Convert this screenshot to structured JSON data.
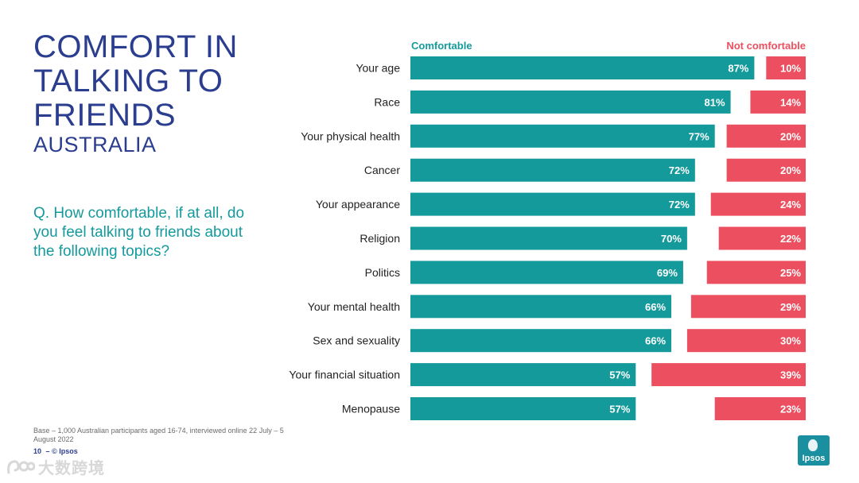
{
  "slide": {
    "title": "COMFORT IN TALKING TO FRIENDS",
    "subtitle": "AUSTRALIA",
    "question": "Q. How comfortable, if at all, do you feel talking to friends about the following topics?",
    "base_note": "Base – 1,000 Australian participants aged 16-74, interviewed online 22 July – 5 August 2022",
    "page_number": "10",
    "page_sep": "–",
    "copyright": "© Ipsos",
    "logo_text": "Ipsos",
    "watermark": "大数跨境"
  },
  "colors": {
    "comfortable": "#159a9c",
    "not_comfortable": "#ec4f5f",
    "title": "#2b3d8f"
  },
  "chart_data": {
    "type": "bar",
    "orientation": "horizontal",
    "layout": "diverging-split",
    "categories": [
      "Your age",
      "Race",
      "Your physical health",
      "Cancer",
      "Your appearance",
      "Religion",
      "Politics",
      "Your mental health",
      "Sex and sexuality",
      "Your financial situation",
      "Menopause"
    ],
    "series": [
      {
        "name": "Comfortable",
        "values": [
          87,
          81,
          77,
          72,
          72,
          70,
          69,
          66,
          66,
          57,
          57
        ],
        "align": "left"
      },
      {
        "name": "Not comfortable",
        "values": [
          10,
          14,
          20,
          20,
          24,
          22,
          25,
          29,
          30,
          39,
          23
        ],
        "align": "right"
      }
    ],
    "value_suffix": "%",
    "xlim": [
      0,
      100
    ],
    "legend_position": "top"
  }
}
